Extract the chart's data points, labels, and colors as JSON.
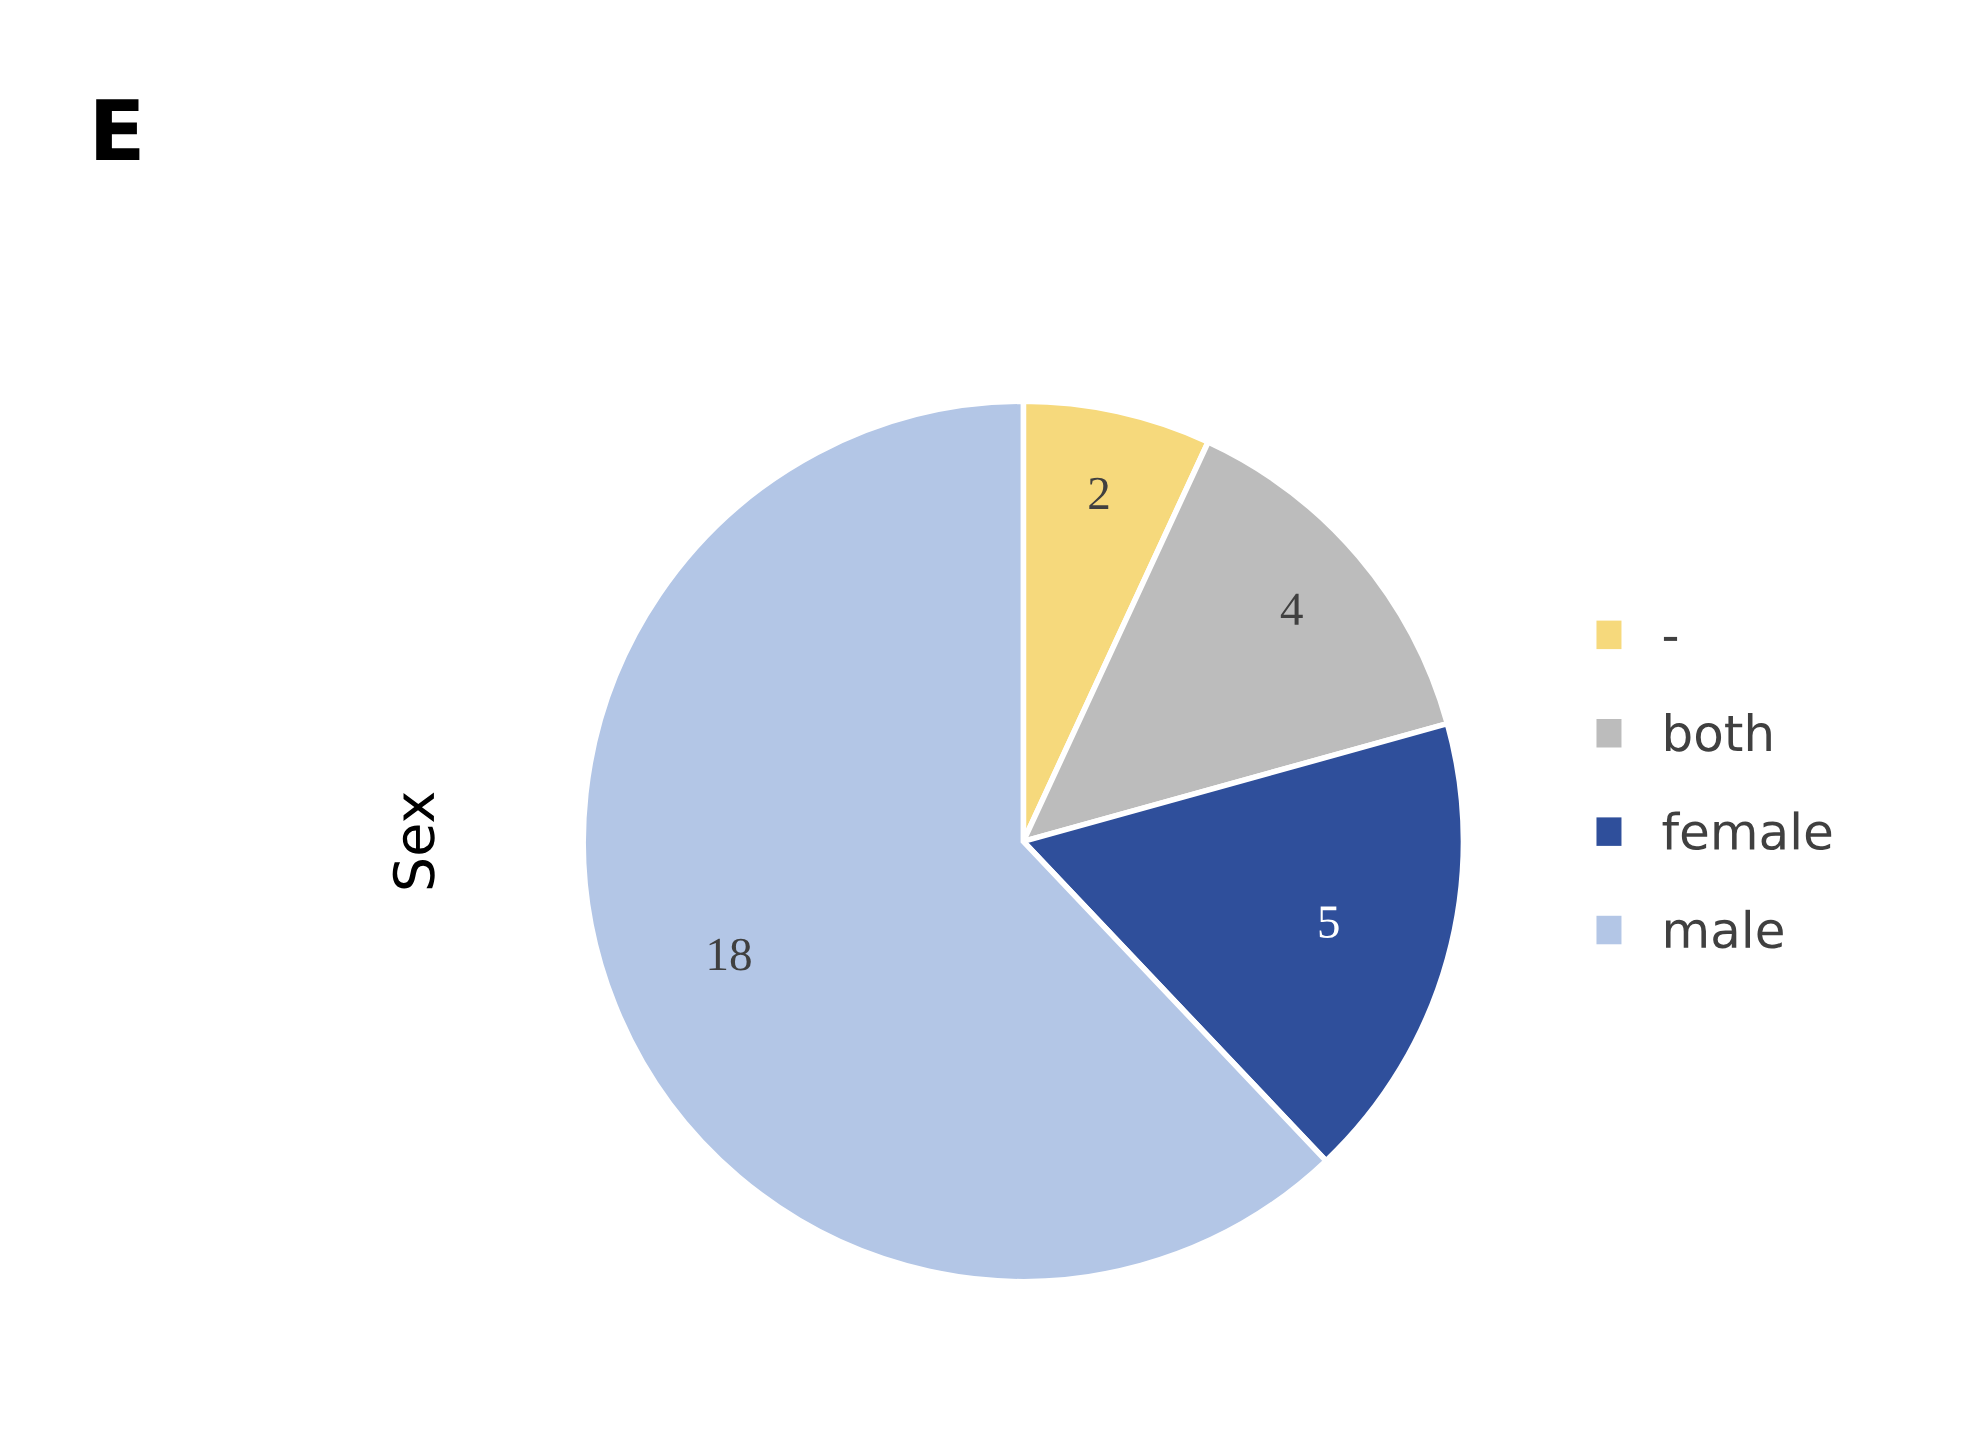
{
  "chart_data": {
    "type": "pie",
    "title": "E",
    "ylabel": "Sex",
    "categories": [
      "-",
      "both",
      "female",
      "male"
    ],
    "values": [
      2,
      4,
      5,
      18
    ],
    "colors": [
      "#f6d97c",
      "#bcbcbc",
      "#2f4f9b",
      "#b3c6e6"
    ],
    "data_labels": true,
    "legend": "right"
  }
}
